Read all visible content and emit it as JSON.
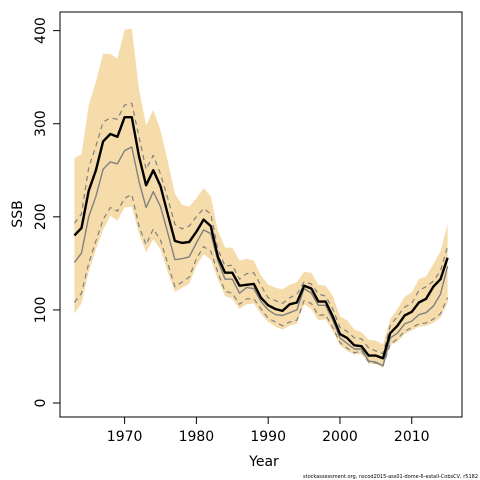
{
  "chart_data": {
    "type": "line",
    "xlabel": "Year",
    "ylabel": "SSB",
    "xlim": [
      1961,
      2017
    ],
    "ylim": [
      -15,
      420
    ],
    "x_ticks": [
      1970,
      1980,
      1990,
      2000,
      2010
    ],
    "y_ticks": [
      0,
      100,
      200,
      300,
      400
    ],
    "footnote": "stockassessment.org, nscod2015-ass01-dome-6-estall-CobsCV, r5182",
    "grid": false,
    "colors": {
      "band": "#f5dcaa",
      "estimate": "#000000",
      "previous": "#808080",
      "interval": "#808080"
    },
    "x": [
      1963,
      1964,
      1965,
      1966,
      1967,
      1968,
      1969,
      1970,
      1971,
      1972,
      1973,
      1974,
      1975,
      1976,
      1977,
      1978,
      1979,
      1980,
      1981,
      1982,
      1983,
      1984,
      1985,
      1986,
      1987,
      1988,
      1989,
      1990,
      1991,
      1992,
      1993,
      1994,
      1995,
      1996,
      1997,
      1998,
      1999,
      2000,
      2001,
      2002,
      2003,
      2004,
      2005,
      2006,
      2007,
      2008,
      2009,
      2010,
      2011,
      2012,
      2013,
      2014,
      2015
    ],
    "series": [
      {
        "values": [
          180,
          188,
          228,
          250,
          281,
          289,
          286,
          307,
          307,
          265,
          234,
          250,
          233,
          203,
          174,
          172,
          173,
          184,
          197,
          190,
          157,
          140,
          140,
          126,
          127,
          128,
          113,
          105,
          101,
          99,
          106,
          108,
          126,
          123,
          109,
          109,
          93,
          74,
          70,
          62,
          61,
          51,
          51,
          48,
          75,
          83,
          94,
          98,
          108,
          112,
          125,
          133,
          156
        ]
      },
      {
        "values": [
          151,
          161,
          200,
          222,
          251,
          259,
          257,
          271,
          275,
          238,
          210,
          227,
          211,
          183,
          154,
          155,
          157,
          172,
          186,
          182,
          153,
          133,
          133,
          118,
          124,
          123,
          109,
          100,
          95,
          94,
          97,
          100,
          123,
          118,
          105,
          105,
          89,
          70,
          64,
          58,
          58,
          45,
          44,
          40,
          70,
          75,
          85,
          88,
          95,
          97,
          104,
          117,
          147
        ]
      },
      {
        "values": [
          193,
          203,
          253,
          276,
          302,
          306,
          305,
          320,
          322,
          286,
          251,
          266,
          246,
          220,
          192,
          187,
          190,
          200,
          209,
          203,
          165,
          147,
          148,
          133,
          139,
          140,
          126,
          113,
          110,
          107,
          113,
          117,
          130,
          128,
          117,
          115,
          101,
          81,
          77,
          70,
          69,
          59,
          56,
          53,
          83,
          93,
          103,
          107,
          121,
          125,
          131,
          142,
          168
        ]
      },
      {
        "values": [
          108,
          118,
          150,
          174,
          197,
          210,
          206,
          220,
          224,
          190,
          170,
          187,
          175,
          150,
          125,
          130,
          135,
          155,
          168,
          163,
          140,
          120,
          118,
          106,
          112,
          112,
          101,
          91,
          87,
          83,
          87,
          89,
          110,
          107,
          94,
          95,
          81,
          65,
          59,
          54,
          56,
          44,
          43,
          40,
          63,
          69,
          77,
          81,
          85,
          86,
          90,
          96,
          113
        ]
      }
    ],
    "band_upper": [
      263,
      267,
      320,
      345,
      375,
      375,
      370,
      401,
      402,
      337,
      298,
      315,
      293,
      260,
      225,
      213,
      211,
      220,
      231,
      222,
      185,
      167,
      167,
      153,
      155,
      153,
      137,
      127,
      124,
      122,
      127,
      130,
      141,
      140,
      127,
      126,
      115,
      93,
      89,
      79,
      76,
      68,
      67,
      63,
      90,
      101,
      114,
      119,
      133,
      136,
      149,
      163,
      192
    ],
    "band_lower": [
      96,
      107,
      141,
      165,
      186,
      201,
      196,
      210,
      211,
      182,
      162,
      176,
      165,
      141,
      119,
      124,
      128,
      147,
      160,
      154,
      133,
      115,
      112,
      101,
      106,
      107,
      96,
      87,
      82,
      79,
      83,
      85,
      106,
      101,
      89,
      90,
      77,
      62,
      56,
      52,
      53,
      42,
      42,
      38,
      62,
      66,
      74,
      78,
      82,
      83,
      86,
      92,
      108
    ]
  }
}
